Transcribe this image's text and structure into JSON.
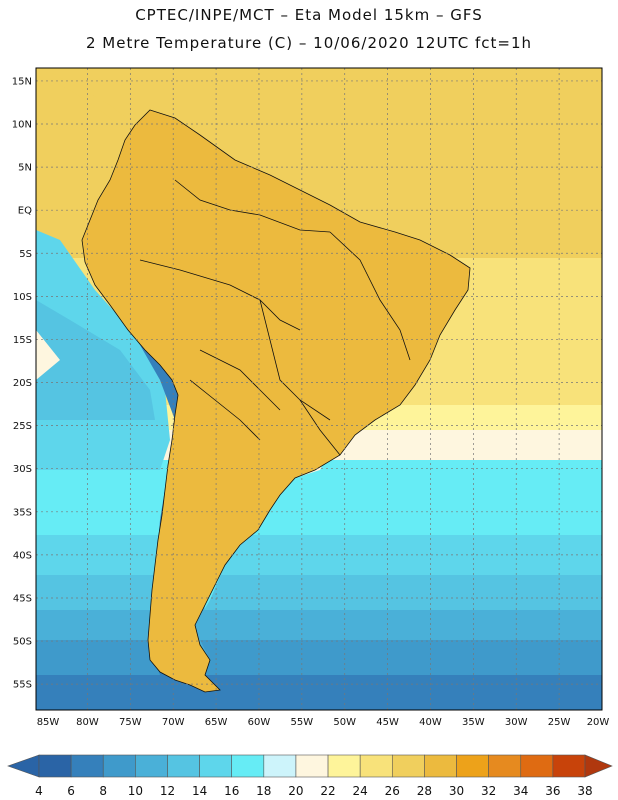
{
  "header": {
    "line1": "CPTEC/INPE/MCT –  Eta Model 15km – GFS",
    "line2": "2 Metre Temperature (C) – 10/06/2020 12UTC fct=1h"
  },
  "map": {
    "lat_labels": [
      "15N",
      "10N",
      "5N",
      "EQ",
      "5S",
      "10S",
      "15S",
      "20S",
      "25S",
      "30S",
      "35S",
      "40S",
      "45S",
      "50S",
      "55S"
    ],
    "lon_labels": [
      "85W",
      "80W",
      "75W",
      "70W",
      "65W",
      "60W",
      "55W",
      "50W",
      "45W",
      "40W",
      "35W",
      "30W",
      "25W",
      "20W"
    ],
    "lat_values": [
      15,
      10,
      5,
      0,
      -5,
      -10,
      -15,
      -20,
      -25,
      -30,
      -35,
      -40,
      -45,
      -50,
      -55
    ],
    "lon_values": [
      -85,
      -80,
      -75,
      -70,
      -65,
      -60,
      -55,
      -50,
      -45,
      -40,
      -35,
      -30,
      -25,
      -20
    ],
    "lat_range": [
      -58,
      16.5
    ],
    "lon_range": [
      -86,
      -20
    ]
  },
  "colorbar": {
    "levels": [
      "4",
      "6",
      "8",
      "10",
      "12",
      "14",
      "16",
      "18",
      "20",
      "22",
      "24",
      "26",
      "28",
      "30",
      "32",
      "34",
      "36",
      "38"
    ],
    "colors": [
      "#2a64a6",
      "#3580bb",
      "#3f9acb",
      "#4ab0d8",
      "#55c4e2",
      "#5ed6eb",
      "#66ecf5",
      "#cdf4fb",
      "#fef6df",
      "#fef49a",
      "#f8e27a",
      "#f0cf5d",
      "#ecba3e",
      "#eda21a",
      "#e68a1f",
      "#df6b12",
      "#c8430a",
      "#b0380e"
    ],
    "low_end_color": "#2a64a6",
    "high_end_color": "#b0380e"
  },
  "colors": {
    "ocean_warm": "#fef2a3",
    "ocean_mild": "#fdf6df",
    "ocean_cool": "#66ecf5",
    "ocean_cold": "#55c4e2",
    "ocean_colder": "#3f9acb",
    "ocean_coldest": "#2a64a6",
    "land_hot": "#ecba3e",
    "land_warm": "#f0cf5d",
    "andes_cold": "#2a64a6"
  }
}
